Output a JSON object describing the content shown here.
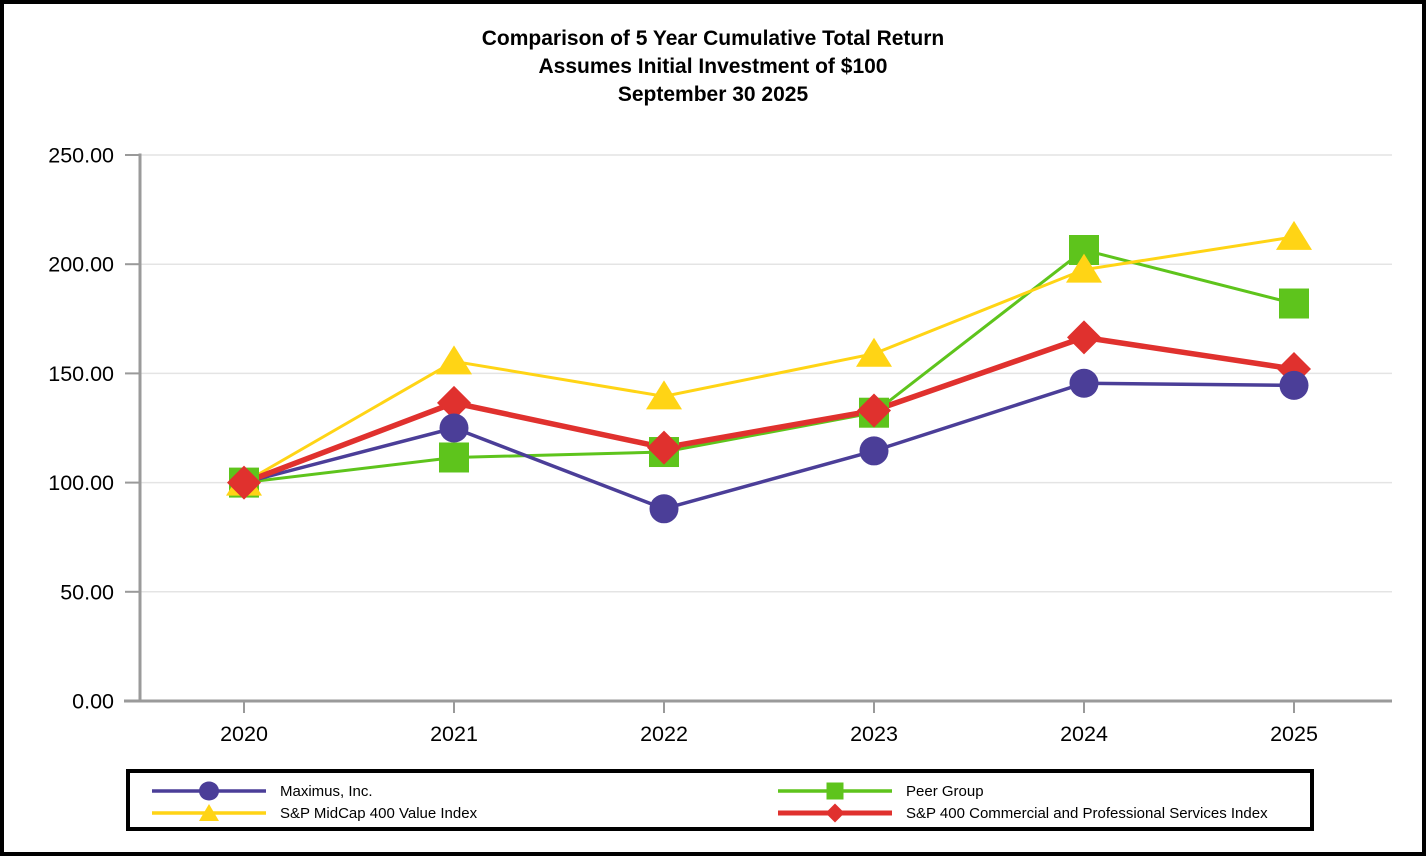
{
  "chart_data": {
    "type": "line",
    "title_lines": [
      "Comparison of 5 Year Cumulative Total Return",
      "Assumes Initial Investment of $100",
      "September 30 2025"
    ],
    "categories": [
      "2020",
      "2021",
      "2022",
      "2023",
      "2024",
      "2025"
    ],
    "series": [
      {
        "name": "Maximus, Inc.",
        "marker": "circle",
        "color": "#4B3E98",
        "line_width": 3.5,
        "values": [
          100,
          125,
          88,
          114.5,
          145.5,
          144.5
        ]
      },
      {
        "name": "Peer Group",
        "marker": "square",
        "color": "#5EC41C",
        "line_width": 3,
        "values": [
          100,
          111.5,
          114,
          132,
          206.5,
          182
        ]
      },
      {
        "name": "S&P MidCap 400 Value Index",
        "marker": "triangle",
        "color": "#FFD415",
        "line_width": 3,
        "values": [
          100,
          155.5,
          139.5,
          159,
          197.5,
          212.5
        ]
      },
      {
        "name": "S&P 400 Commercial and Professional Services Index",
        "marker": "diamond",
        "color": "#E0312E",
        "line_width": 5.5,
        "values": [
          100,
          136.5,
          116,
          133,
          166.5,
          152
        ]
      }
    ],
    "ylim": [
      0,
      250
    ],
    "ytick_step": 50,
    "ytick_labels": [
      "0.00",
      "50.00",
      "100.00",
      "150.00",
      "200.00",
      "250.00"
    ],
    "grid": true,
    "legend_position": "bottom",
    "axis_color": "#9A9A9A",
    "gridline_color": "#E4E4E4",
    "text_color": "#000000"
  }
}
